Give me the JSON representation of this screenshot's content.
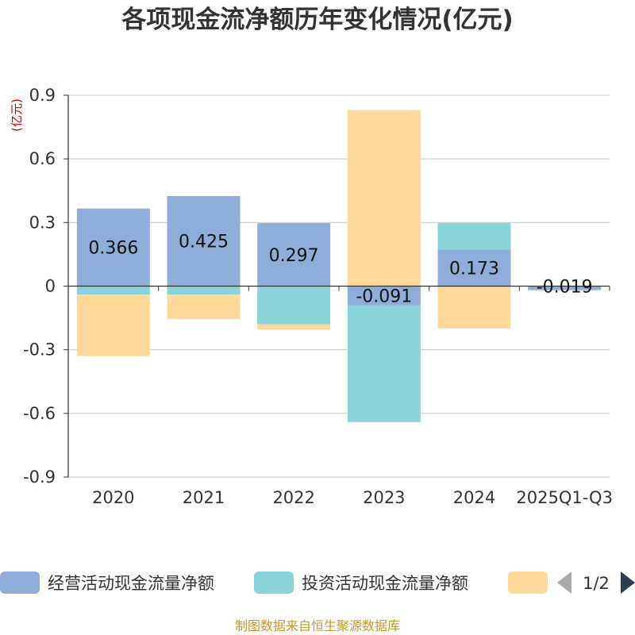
{
  "chart_data": {
    "type": "bar",
    "stacked": true,
    "title": "各项现金流净额历年变化情况(亿元)",
    "unit_label": "(亿元)",
    "categories": [
      "2020",
      "2021",
      "2022",
      "2023",
      "2024",
      "2025Q1-Q3"
    ],
    "ylim": [
      -0.9,
      0.9
    ],
    "yticks": [
      "0.9",
      "0.6",
      "0.3",
      "0",
      "-0.3",
      "-0.6",
      "-0.9"
    ],
    "grid": true,
    "legend_position": "bottom",
    "series": [
      {
        "name": "经营活动现金流量净额",
        "color": "#8eadd9",
        "values": [
          0.366,
          0.425,
          0.297,
          -0.091,
          0.173,
          -0.019
        ],
        "labels": [
          "0.366",
          "0.425",
          "0.297",
          "-0.091",
          "0.173",
          "-0.019"
        ]
      },
      {
        "name": "投资活动现金流量净额",
        "color": "#88d4d8",
        "values": [
          -0.04,
          -0.04,
          -0.18,
          -0.55,
          0.125,
          0.0
        ]
      },
      {
        "name": "",
        "color": "#fdd898",
        "values": [
          -0.29,
          -0.115,
          -0.025,
          0.83,
          -0.2,
          0.0
        ]
      }
    ],
    "legend_page": "1/2",
    "source": "制图数据来自恒生聚源数据库"
  }
}
